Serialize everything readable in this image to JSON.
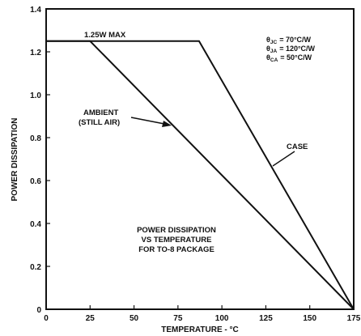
{
  "chart_data": {
    "type": "line",
    "xlabel": "TEMPERATURE - °C",
    "ylabel": "POWER DISSIPATION",
    "xlim": [
      0,
      175
    ],
    "ylim": [
      0,
      1.4
    ],
    "x_ticks": [
      "0",
      "25",
      "50",
      "75",
      "100",
      "125",
      "150",
      "175"
    ],
    "y_ticks": [
      "0",
      "0.2",
      "0.4",
      "0.6",
      "0.8",
      "1.0",
      "1.2",
      "1.4"
    ],
    "grid": false,
    "series": [
      {
        "name": "AMBIENT\n(STILL AIR)",
        "points": [
          [
            0,
            1.25
          ],
          [
            25,
            1.25
          ],
          [
            175,
            0
          ]
        ]
      },
      {
        "name": "CASE",
        "points": [
          [
            0,
            1.25
          ],
          [
            87,
            1.25
          ],
          [
            175,
            0
          ]
        ]
      }
    ],
    "annotations": {
      "max_label": "1.25W MAX",
      "ambient_line1": "AMBIENT",
      "ambient_line2": "(STILL AIR)",
      "case_label": "CASE",
      "caption_line1": "POWER DISSIPATION",
      "caption_line2": "VS TEMPERATURE",
      "caption_line3": "FOR TO-8 PACKAGE",
      "thermal": [
        {
          "symbol": "θ",
          "sub": "JC",
          "value": "= 70°C/W"
        },
        {
          "symbol": "θ",
          "sub": "JA",
          "value": "= 120°C/W"
        },
        {
          "symbol": "θ",
          "sub": "CA",
          "value": "= 50°C/W"
        }
      ]
    }
  }
}
